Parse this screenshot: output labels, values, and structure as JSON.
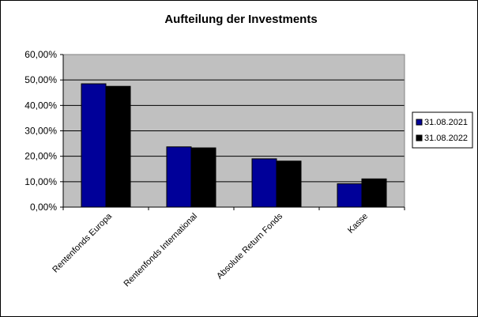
{
  "chart_data": {
    "type": "bar",
    "title": "Aufteilung der Investments",
    "xlabel": "",
    "ylabel": "",
    "categories": [
      "Rentenfonds Europa",
      "Rentenfonds International",
      "Absolute Return Fonds",
      "Kasse"
    ],
    "series": [
      {
        "name": "31.08.2021",
        "values": [
          48.5,
          23.7,
          19.0,
          9.2
        ],
        "color": "#000099"
      },
      {
        "name": "31.08.2022",
        "values": [
          47.5,
          23.3,
          18.1,
          11.1
        ],
        "color": "#000000"
      }
    ],
    "ylim": [
      0,
      60
    ],
    "yticks": [
      0,
      10,
      20,
      30,
      40,
      50,
      60
    ],
    "ytick_labels": [
      "0,00%",
      "10,00%",
      "20,00%",
      "30,00%",
      "40,00%",
      "50,00%",
      "60,00%"
    ],
    "grid": true,
    "plot_background": "#c0c0c0",
    "legend_position": "right"
  }
}
